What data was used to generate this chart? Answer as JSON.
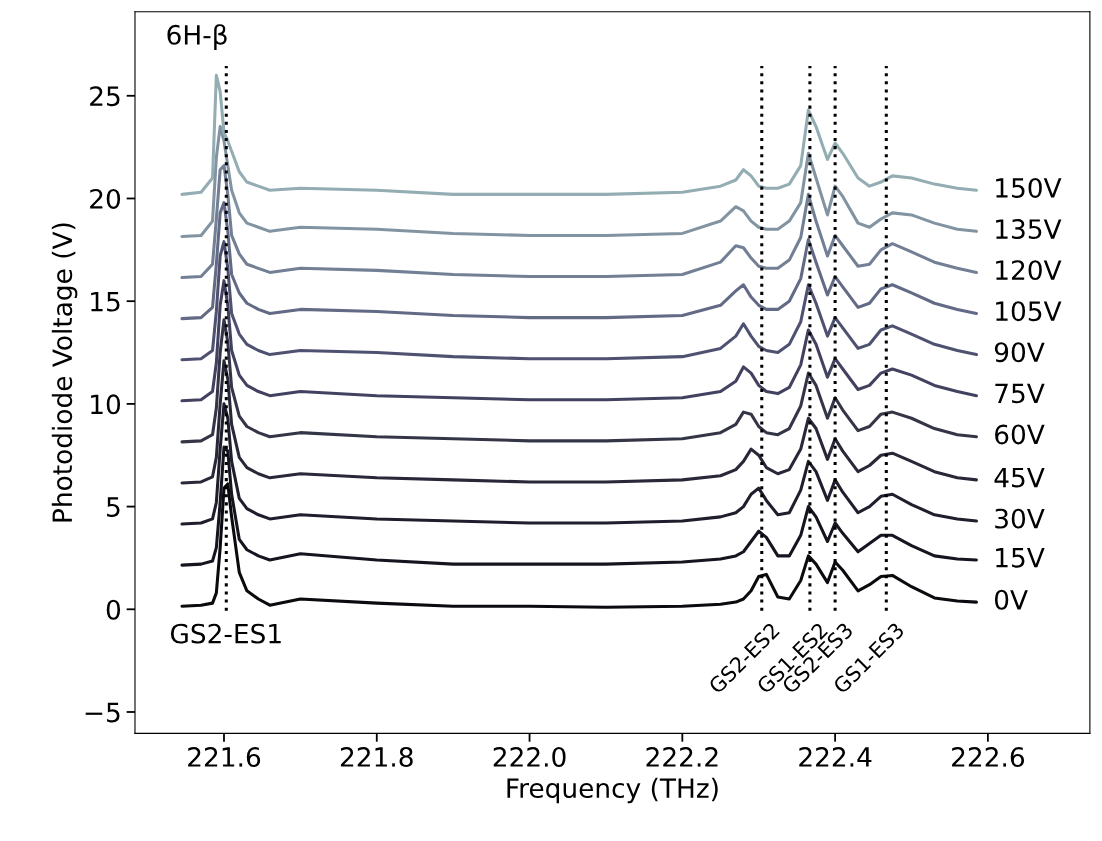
{
  "chart_data": {
    "type": "line",
    "xlabel": "Frequency (THz)",
    "ylabel": "Photodiode Voltage (V)",
    "xlim": [
      221.4835,
      222.7335
    ],
    "ylim": [
      -6.04,
      29.09
    ],
    "xticks": [
      221.6,
      221.8,
      {
        "value": 222,
        "label": "222.0"
      },
      222.2,
      222.4,
      222.6
    ],
    "yticks": [
      {
        "value": -5,
        "label": "−5"
      },
      0,
      5,
      10,
      15,
      20,
      25
    ],
    "grid": false,
    "legend": false,
    "marker": "none",
    "line_style": "solid",
    "x": [
      221.545,
      221.57,
      221.585,
      221.59,
      221.595,
      221.6,
      221.605,
      221.61,
      221.62,
      221.63,
      221.645,
      221.66,
      221.7,
      221.8,
      221.9,
      222.0,
      222.1,
      222.2,
      222.25,
      222.27,
      222.28,
      222.29,
      222.3,
      222.31,
      222.325,
      222.34,
      222.355,
      222.365,
      222.375,
      222.39,
      222.4,
      222.41,
      222.43,
      222.445,
      222.46,
      222.475,
      222.5,
      222.53,
      222.56,
      222.585
    ],
    "series": [
      {
        "name": "0V",
        "color": "#0a0a0f",
        "values": [
          0.15,
          0.2,
          0.3,
          0.8,
          3.0,
          5.9,
          6.1,
          4.5,
          1.8,
          0.9,
          0.5,
          0.2,
          0.5,
          0.3,
          0.15,
          0.15,
          0.1,
          0.15,
          0.25,
          0.35,
          0.5,
          0.9,
          1.6,
          1.7,
          0.6,
          0.5,
          1.4,
          2.6,
          2.2,
          1.3,
          2.3,
          1.9,
          0.9,
          1.2,
          1.6,
          1.65,
          1.1,
          0.55,
          0.4,
          0.35
        ]
      },
      {
        "name": "15V",
        "color": "#151520",
        "values": [
          2.15,
          2.2,
          2.35,
          3.0,
          5.2,
          7.9,
          7.7,
          5.6,
          3.4,
          2.9,
          2.6,
          2.4,
          2.7,
          2.4,
          2.2,
          2.2,
          2.2,
          2.3,
          2.45,
          2.6,
          2.8,
          3.3,
          3.8,
          3.5,
          2.6,
          2.6,
          3.6,
          5.0,
          4.5,
          3.3,
          4.2,
          3.7,
          2.8,
          3.2,
          3.6,
          3.6,
          3.1,
          2.6,
          2.45,
          2.4
        ]
      },
      {
        "name": "30V",
        "color": "#1e1e2d",
        "values": [
          4.15,
          4.2,
          4.4,
          5.2,
          7.8,
          10.0,
          9.3,
          7.2,
          5.4,
          4.9,
          4.6,
          4.4,
          4.6,
          4.4,
          4.3,
          4.2,
          4.2,
          4.3,
          4.5,
          4.7,
          5.0,
          5.6,
          5.9,
          5.3,
          4.6,
          4.7,
          5.8,
          7.2,
          6.7,
          5.3,
          6.3,
          5.7,
          4.7,
          5.0,
          5.5,
          5.6,
          5.1,
          4.6,
          4.4,
          4.3
        ]
      },
      {
        "name": "45V",
        "color": "#282838",
        "values": [
          6.15,
          6.2,
          6.45,
          7.4,
          10.0,
          12.1,
          11.2,
          9.0,
          7.4,
          6.9,
          6.6,
          6.4,
          6.6,
          6.4,
          6.3,
          6.2,
          6.2,
          6.3,
          6.5,
          6.8,
          7.2,
          7.8,
          7.5,
          6.9,
          6.6,
          6.8,
          7.8,
          9.3,
          8.8,
          7.3,
          8.3,
          7.7,
          6.7,
          7.0,
          7.5,
          7.6,
          7.2,
          6.7,
          6.4,
          6.3
        ]
      },
      {
        "name": "60V",
        "color": "#353548",
        "values": [
          8.15,
          8.2,
          8.5,
          9.8,
          12.5,
          14.1,
          13.0,
          10.8,
          9.4,
          8.9,
          8.6,
          8.4,
          8.6,
          8.4,
          8.3,
          8.2,
          8.2,
          8.3,
          8.6,
          9.0,
          9.6,
          9.5,
          8.9,
          8.6,
          8.5,
          8.8,
          9.9,
          11.5,
          10.9,
          9.3,
          10.3,
          9.7,
          8.7,
          8.9,
          9.5,
          9.6,
          9.3,
          8.8,
          8.5,
          8.4
        ]
      },
      {
        "name": "75V",
        "color": "#424260",
        "values": [
          10.15,
          10.2,
          10.6,
          12.0,
          14.8,
          16.0,
          14.8,
          12.6,
          11.4,
          10.9,
          10.6,
          10.4,
          10.6,
          10.4,
          10.3,
          10.2,
          10.2,
          10.3,
          10.6,
          11.1,
          11.8,
          11.5,
          10.9,
          10.6,
          10.5,
          10.8,
          11.9,
          13.6,
          12.9,
          11.3,
          12.2,
          11.7,
          10.7,
          10.9,
          11.5,
          11.7,
          11.4,
          10.9,
          10.6,
          10.4
        ]
      },
      {
        "name": "90V",
        "color": "#4f5170",
        "values": [
          12.15,
          12.2,
          12.6,
          14.5,
          17.2,
          17.9,
          16.6,
          14.4,
          13.4,
          12.9,
          12.6,
          12.4,
          12.6,
          12.5,
          12.3,
          12.2,
          12.2,
          12.3,
          12.7,
          13.3,
          13.9,
          13.3,
          12.8,
          12.6,
          12.5,
          12.9,
          14.0,
          15.8,
          14.9,
          13.3,
          14.2,
          13.7,
          12.7,
          12.9,
          13.6,
          13.8,
          13.4,
          12.9,
          12.6,
          12.4
        ]
      },
      {
        "name": "105V",
        "color": "#636a85",
        "values": [
          14.15,
          14.2,
          14.7,
          16.8,
          19.3,
          19.8,
          18.4,
          16.3,
          15.4,
          14.9,
          14.6,
          14.4,
          14.6,
          14.5,
          14.3,
          14.2,
          14.2,
          14.3,
          14.8,
          15.5,
          15.8,
          15.2,
          14.8,
          14.6,
          14.6,
          15.0,
          16.1,
          18.0,
          16.9,
          15.3,
          16.2,
          15.7,
          14.7,
          14.9,
          15.6,
          15.8,
          15.4,
          14.9,
          14.6,
          14.4
        ]
      },
      {
        "name": "120V",
        "color": "#737f95",
        "values": [
          16.15,
          16.2,
          16.8,
          19.0,
          21.4,
          21.6,
          20.2,
          18.2,
          17.3,
          16.8,
          16.6,
          16.4,
          16.6,
          16.5,
          16.3,
          16.2,
          16.2,
          16.3,
          16.9,
          17.7,
          17.6,
          17.1,
          16.7,
          16.6,
          16.6,
          17.0,
          18.1,
          20.2,
          18.9,
          17.2,
          18.2,
          17.7,
          16.7,
          16.8,
          17.5,
          17.8,
          17.4,
          16.9,
          16.6,
          16.4
        ]
      },
      {
        "name": "135V",
        "color": "#8294a2",
        "values": [
          18.15,
          18.2,
          18.9,
          22.0,
          23.5,
          22.8,
          21.6,
          20.4,
          19.3,
          18.8,
          18.6,
          18.4,
          18.6,
          18.5,
          18.3,
          18.2,
          18.2,
          18.3,
          18.9,
          19.6,
          19.4,
          18.9,
          18.6,
          18.5,
          18.5,
          18.9,
          19.8,
          22.2,
          21.0,
          19.2,
          20.6,
          20.1,
          18.8,
          18.6,
          19.0,
          19.3,
          19.2,
          18.8,
          18.5,
          18.4
        ]
      },
      {
        "name": "150V",
        "color": "#93adb3",
        "values": [
          20.2,
          20.3,
          21.0,
          26.0,
          25.2,
          23.2,
          22.8,
          22.3,
          21.3,
          20.8,
          20.6,
          20.4,
          20.5,
          20.4,
          20.2,
          20.2,
          20.2,
          20.3,
          20.6,
          20.9,
          21.4,
          21.1,
          20.6,
          20.5,
          20.5,
          20.7,
          21.6,
          24.3,
          23.5,
          21.9,
          22.7,
          22.2,
          21.0,
          20.6,
          20.8,
          21.1,
          21.0,
          20.7,
          20.5,
          20.4
        ]
      }
    ],
    "ref_lines": [
      {
        "axis": "x",
        "value": 221.603,
        "label": "GS2-ES1",
        "color": "#000000",
        "line_style": "dotted"
      },
      {
        "axis": "x",
        "value": 222.304,
        "label": "GS2-ES2",
        "color": "#000000",
        "line_style": "dotted"
      },
      {
        "axis": "x",
        "value": 222.367,
        "label": "GS1-ES2",
        "color": "#000000",
        "line_style": "dotted"
      },
      {
        "axis": "x",
        "value": 222.4,
        "label": "GS2-ES3",
        "color": "#000000",
        "line_style": "dotted"
      },
      {
        "axis": "x",
        "value": 222.467,
        "label": "GS1-ES3",
        "color": "#000000",
        "line_style": "dotted"
      }
    ],
    "annotations": [
      "6H-β"
    ]
  }
}
